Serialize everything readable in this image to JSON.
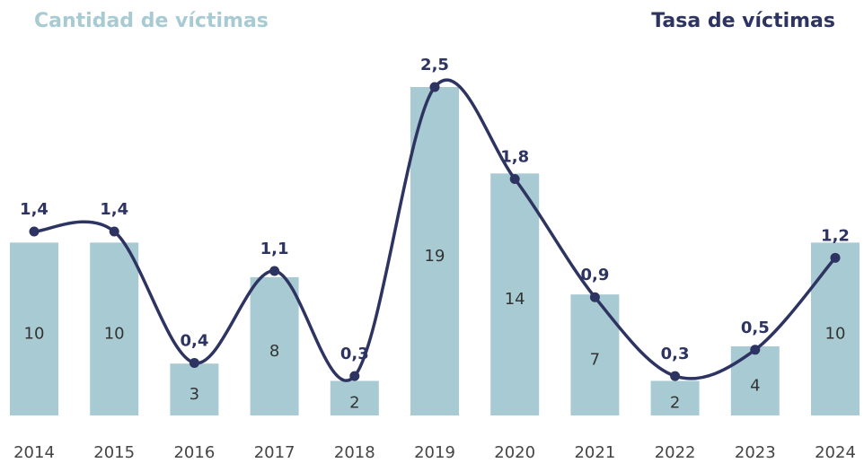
{
  "chart_data": {
    "type": "bar",
    "categories": [
      "2014",
      "2015",
      "2016",
      "2017",
      "2018",
      "2019",
      "2020",
      "2021",
      "2022",
      "2023",
      "2024"
    ],
    "series": [
      {
        "name": "Cantidad de víctimas",
        "color": "#a8cbd3",
        "values": [
          10,
          10,
          3,
          8,
          2,
          19,
          14,
          7,
          2,
          4,
          10
        ]
      },
      {
        "name": "Tasa de víctimas",
        "color": "#2e3461",
        "type": "line",
        "axis": "y2",
        "values": [
          1.4,
          1.4,
          0.4,
          1.1,
          0.3,
          2.5,
          1.8,
          0.9,
          0.3,
          0.5,
          1.2
        ],
        "value_labels": [
          "1,4",
          "1,4",
          "0,4",
          "1,1",
          "0,3",
          "2,5",
          "1,8",
          "0,9",
          "0,3",
          "0,5",
          "1,2"
        ]
      }
    ],
    "ylim": [
      0,
      19
    ],
    "y2lim": [
      0,
      2.5
    ]
  }
}
